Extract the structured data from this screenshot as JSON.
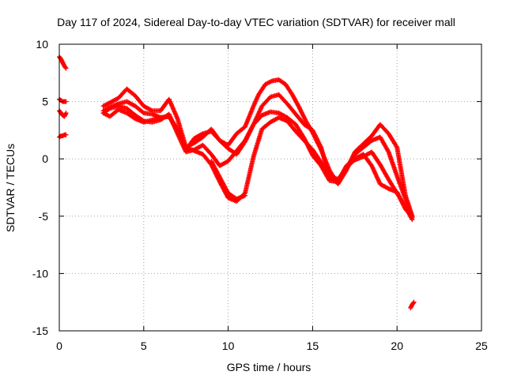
{
  "chart_data": {
    "type": "scatter",
    "title": "Day 117 of 2024, Sidereal Day-to-day VTEC variation (SDTVAR) for receiver mall",
    "xlabel": "GPS time / hours",
    "ylabel": "SDTVAR / TECUs",
    "xlim": [
      0,
      25
    ],
    "ylim": [
      -15,
      10
    ],
    "xticks": [
      "0",
      "5",
      "10",
      "15",
      "20",
      "25"
    ],
    "yticks": [
      "10",
      "5",
      "0",
      "-5",
      "-10",
      "-15"
    ],
    "grid": true,
    "marker": "+",
    "color": "#ff0000",
    "series": [
      {
        "name": "a1",
        "x": [
          0.0,
          0.1,
          0.2,
          0.3,
          0.4
        ],
        "y": [
          8.9,
          8.7,
          8.4,
          8.1,
          7.9
        ]
      },
      {
        "name": "a2",
        "x": [
          0.0,
          0.1,
          0.2,
          0.3,
          0.4
        ],
        "y": [
          5.2,
          5.1,
          5.0,
          5.0,
          5.0
        ]
      },
      {
        "name": "a3",
        "x": [
          0.0,
          0.1,
          0.2,
          0.3,
          0.4
        ],
        "y": [
          4.2,
          4.0,
          3.8,
          3.7,
          4.0
        ]
      },
      {
        "name": "a4",
        "x": [
          0.0,
          0.1,
          0.2,
          0.3,
          0.4
        ],
        "y": [
          1.9,
          2.0,
          2.0,
          2.1,
          2.1
        ]
      },
      {
        "name": "b1",
        "x": [
          2.6,
          3.0,
          3.5,
          4.0,
          4.5,
          5.0,
          5.5,
          6.0,
          6.5,
          7.0,
          7.5,
          8.0,
          8.5,
          9.0,
          9.5,
          10.0,
          10.5,
          11.0,
          11.5,
          11.8,
          12.2,
          12.6,
          13.0,
          13.4,
          13.8,
          14.2,
          14.6,
          15.0,
          15.5,
          16.0,
          16.5,
          17.0,
          17.5,
          18.0,
          18.5,
          19.0,
          19.5,
          20.0,
          20.5,
          20.9
        ],
        "y": [
          4.6,
          4.9,
          5.3,
          6.1,
          5.5,
          4.6,
          4.2,
          4.2,
          5.2,
          3.5,
          1.0,
          1.4,
          1.9,
          2.6,
          1.6,
          1.2,
          2.2,
          2.8,
          4.6,
          5.6,
          6.5,
          6.8,
          6.9,
          6.5,
          5.6,
          4.5,
          3.3,
          2.3,
          0.8,
          -1.0,
          -2.2,
          -1.0,
          0.6,
          1.3,
          2.0,
          3.0,
          2.2,
          1.0,
          -3.2,
          -5.0
        ]
      },
      {
        "name": "b2",
        "x": [
          2.6,
          3.0,
          3.5,
          4.0,
          4.5,
          5.0,
          5.5,
          6.0,
          6.5,
          7.0,
          7.5,
          8.0,
          8.5,
          9.0,
          9.5,
          10.0,
          10.5,
          11.0,
          11.5,
          12.0,
          12.5,
          13.0,
          13.5,
          14.0,
          14.5,
          15.0,
          15.5,
          16.0,
          16.5,
          17.0,
          17.5,
          18.0,
          18.5,
          19.0,
          19.5,
          20.0,
          20.5,
          20.9
        ],
        "y": [
          4.2,
          4.5,
          4.8,
          5.0,
          4.6,
          4.0,
          3.9,
          3.6,
          3.7,
          2.6,
          0.8,
          1.8,
          2.2,
          2.4,
          1.6,
          0.9,
          0.4,
          1.5,
          3.0,
          4.6,
          5.4,
          5.6,
          4.8,
          3.9,
          3.0,
          2.5,
          1.0,
          -1.6,
          -2.1,
          -0.8,
          0.4,
          1.0,
          1.6,
          1.9,
          0.6,
          -1.5,
          -3.5,
          -5.1
        ]
      },
      {
        "name": "b3",
        "x": [
          2.6,
          3.0,
          3.5,
          4.0,
          4.5,
          5.0,
          5.5,
          6.0,
          6.5,
          7.0,
          7.5,
          8.0,
          8.5,
          9.0,
          9.5,
          10.0,
          10.5,
          11.0,
          11.5,
          12.0,
          12.5,
          13.0,
          13.5,
          14.0,
          14.5,
          15.0,
          15.5,
          16.0,
          16.5,
          17.0,
          17.5,
          18.0,
          18.5,
          19.0,
          19.5,
          20.0,
          20.5,
          20.9
        ],
        "y": [
          4.0,
          4.4,
          4.6,
          4.4,
          3.8,
          3.3,
          3.2,
          3.4,
          3.9,
          2.2,
          0.6,
          0.8,
          1.2,
          0.4,
          -0.6,
          -0.2,
          0.7,
          1.6,
          3.0,
          3.8,
          4.1,
          4.0,
          3.6,
          3.0,
          1.8,
          0.3,
          -0.6,
          -1.9,
          -2.0,
          -0.6,
          -0.1,
          0.2,
          0.6,
          -0.5,
          -1.8,
          -3.0,
          -4.2,
          -5.3
        ]
      },
      {
        "name": "b4",
        "x": [
          2.6,
          3.0,
          3.5,
          4.0,
          4.5,
          5.0,
          5.5,
          6.0,
          6.5,
          7.0,
          7.5,
          8.0,
          8.5,
          9.0,
          9.5,
          10.0,
          10.5,
          11.0,
          11.5,
          12.0,
          12.5,
          13.0,
          13.5,
          14.0,
          14.5,
          15.0,
          15.5,
          16.0,
          16.5,
          17.0,
          17.5,
          18.0,
          18.5,
          19.0,
          19.5,
          20.0,
          20.5,
          20.9
        ],
        "y": [
          4.0,
          3.7,
          4.3,
          4.0,
          3.5,
          3.2,
          3.4,
          3.6,
          3.7,
          2.4,
          1.0,
          0.7,
          0.4,
          -0.5,
          -2.0,
          -3.4,
          -3.7,
          -3.0,
          0.2,
          2.6,
          3.2,
          3.6,
          3.3,
          2.4,
          1.6,
          0.8,
          -0.3,
          -1.4,
          -1.8,
          -0.8,
          0.0,
          0.4,
          -0.6,
          -2.2,
          -2.6,
          -2.9,
          -4.4,
          -5.0
        ]
      },
      {
        "name": "b5",
        "x": [
          9.0,
          9.5,
          10.0,
          10.5,
          11.0
        ],
        "y": [
          -0.2,
          -1.6,
          -3.0,
          -3.5,
          -3.2
        ]
      },
      {
        "name": "c1",
        "x": [
          20.8,
          20.9,
          21.0
        ],
        "y": [
          -13.0,
          -12.7,
          -12.5
        ]
      }
    ]
  }
}
